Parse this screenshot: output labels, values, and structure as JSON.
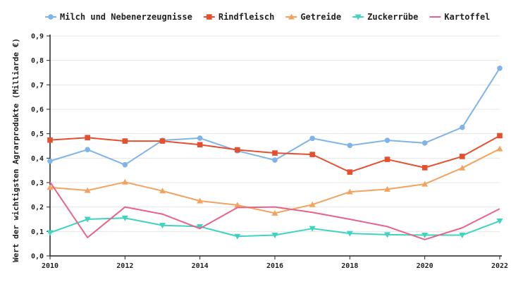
{
  "chart_data": {
    "type": "line",
    "title": "",
    "xlabel": "",
    "ylabel": "Wert der wichtigsten Agrarprodukte (Milliarde €)",
    "x": [
      2010,
      2011,
      2012,
      2013,
      2014,
      2015,
      2016,
      2017,
      2018,
      2019,
      2020,
      2021,
      2022
    ],
    "x_ticks": [
      "2010",
      "2012",
      "2014",
      "2016",
      "2018",
      "2020",
      "2022"
    ],
    "y_ticks": [
      "0,0",
      "0,1",
      "0,2",
      "0,3",
      "0,4",
      "0,5",
      "0,6",
      "0,7",
      "0,8",
      "0,9"
    ],
    "ylim": [
      0,
      0.9
    ],
    "xlim": [
      2010,
      2022
    ],
    "grid": true,
    "legend_position": "top",
    "series": [
      {
        "name": "Milch und Nebenerzeugnisse",
        "color": "#7eb4e8",
        "marker": "circle",
        "values": [
          0.388,
          0.435,
          0.373,
          0.473,
          0.482,
          0.43,
          0.392,
          0.481,
          0.452,
          0.473,
          0.462,
          0.526,
          0.768
        ]
      },
      {
        "name": "Rindfleisch",
        "color": "#e4502f",
        "marker": "square",
        "values": [
          0.474,
          0.484,
          0.47,
          0.47,
          0.455,
          0.434,
          0.421,
          0.415,
          0.343,
          0.395,
          0.361,
          0.407,
          0.492
        ]
      },
      {
        "name": "Getreide",
        "color": "#f2a35e",
        "marker": "triangle-up",
        "values": [
          0.28,
          0.268,
          0.302,
          0.266,
          0.225,
          0.208,
          0.175,
          0.21,
          0.262,
          0.273,
          0.294,
          0.36,
          0.438
        ]
      },
      {
        "name": "Zuckerrübe",
        "color": "#3fd3c0",
        "marker": "triangle-down",
        "values": [
          0.095,
          0.15,
          0.155,
          0.125,
          0.12,
          0.08,
          0.085,
          0.112,
          0.092,
          0.087,
          0.085,
          0.085,
          0.143
        ]
      },
      {
        "name": "Kartoffel",
        "color": "#e8628a",
        "marker": "none",
        "values": [
          0.302,
          0.075,
          0.2,
          0.171,
          0.112,
          0.198,
          0.2,
          0.178,
          0.15,
          0.12,
          0.067,
          0.115,
          0.193
        ]
      }
    ]
  }
}
